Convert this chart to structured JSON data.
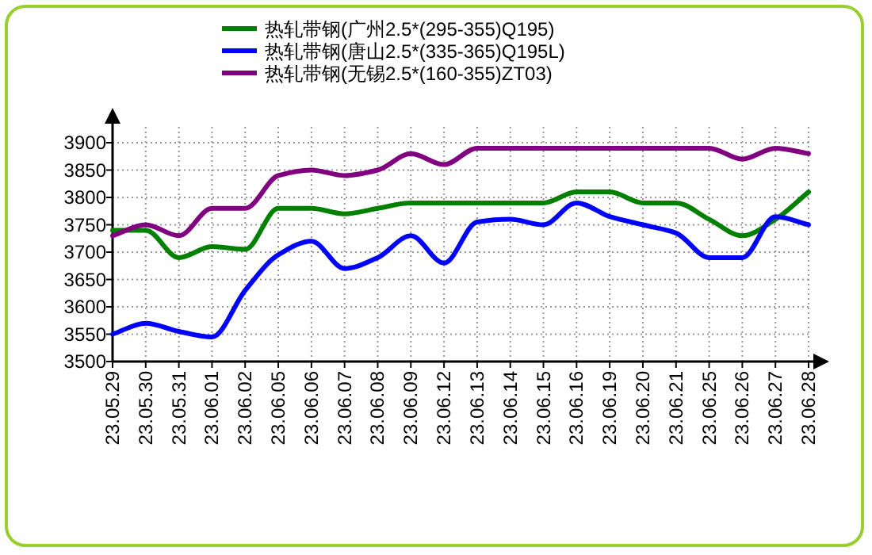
{
  "chart_data": {
    "type": "line",
    "categories": [
      "23.05.29",
      "23.05.30",
      "23.05.31",
      "23.06.01",
      "23.06.02",
      "23.06.05",
      "23.06.06",
      "23.06.07",
      "23.06.08",
      "23.06.09",
      "23.06.12",
      "23.06.13",
      "23.06.14",
      "23.06.15",
      "23.06.16",
      "23.06.19",
      "23.06.20",
      "23.06.21",
      "23.06.25",
      "23.06.26",
      "23.06.27",
      "23.06.28"
    ],
    "series": [
      {
        "name": "热轧带钢(广州2.5*(295-355)Q195)",
        "color": "#008000",
        "values": [
          3740,
          3740,
          3690,
          3710,
          3705,
          3780,
          3780,
          3770,
          3780,
          3790,
          3790,
          3790,
          3790,
          3790,
          3810,
          3810,
          3790,
          3790,
          3760,
          3730,
          3760,
          3810
        ]
      },
      {
        "name": "热轧带钢(唐山2.5*(335-365)Q195L)",
        "color": "#0000ff",
        "values": [
          3550,
          3570,
          3555,
          3545,
          3630,
          3695,
          3720,
          3670,
          3690,
          3730,
          3680,
          3755,
          3760,
          3750,
          3790,
          3765,
          3750,
          3735,
          3690,
          3690,
          3765,
          3750
        ]
      },
      {
        "name": "热轧带钢(无锡2.5*(160-355)ZT03)",
        "color": "#800080",
        "values": [
          3730,
          3750,
          3730,
          3780,
          3780,
          3840,
          3850,
          3840,
          3850,
          3880,
          3860,
          3890,
          3890,
          3890,
          3890,
          3890,
          3890,
          3890,
          3890,
          3870,
          3890,
          3880
        ]
      }
    ],
    "ylim": [
      3500,
      3900
    ],
    "yticks": [
      3500,
      3550,
      3600,
      3650,
      3700,
      3750,
      3800,
      3850,
      3900
    ],
    "grid": true,
    "legend": "top",
    "marker": "none",
    "line_style": "solid"
  }
}
